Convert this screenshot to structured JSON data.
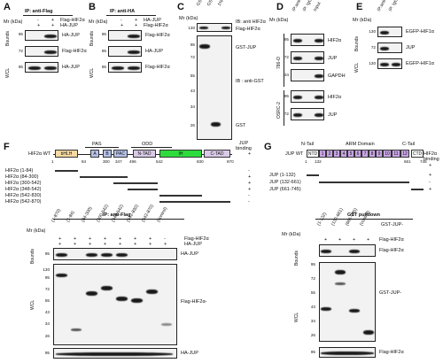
{
  "panels": {
    "A": {
      "letter": "A",
      "mr": "Mr (kDa)",
      "header": "IP: anti-Flag",
      "rows": [
        {
          "sign1": "-",
          "sign2": "+",
          "label": "Flag-HIF2α"
        },
        {
          "sign1": "+",
          "sign2": "+",
          "label": "HA-JUP"
        }
      ],
      "group1": "Bounds",
      "group2": "WCL",
      "blot_labels": [
        "HA-JUP",
        "Flag-HIF2α",
        "HA-JUP"
      ],
      "markers": [
        "95",
        "72",
        "95"
      ]
    },
    "B": {
      "letter": "B",
      "mr": "Mr (kDa)",
      "header": "IP: anti-HA",
      "rows": [
        {
          "sign1": "-",
          "sign2": "+",
          "label": "HA-JUP"
        },
        {
          "sign1": "+",
          "sign2": "+",
          "label": "Flag-HIF2α"
        }
      ],
      "group1": "Bounds",
      "group2": "WCL",
      "blot_labels": [
        "Flag-HIF2α",
        "HA-JUP",
        "Flag-HIF2α"
      ],
      "markers": [
        "95",
        "95",
        "95"
      ]
    },
    "C": {
      "letter": "C",
      "mr": "Mr (kDa)",
      "lanes": [
        "GST-JUP",
        "GST",
        "1% Input"
      ],
      "ib_top": "IB: anti HIF2α",
      "ib_top2": "Flag-HIF2α",
      "ib_mid": "IB : anti-GST",
      "label_gstjup": "GST-JUP",
      "label_gst": "GST",
      "markers": [
        "130",
        "95",
        "72",
        "55",
        "43",
        "34",
        "26"
      ]
    },
    "D": {
      "letter": "D",
      "mr": "Mr (kDa)",
      "lanes": [
        "IP:anti-JUP",
        "IP: IgG",
        "Input"
      ],
      "cell1": "786-O",
      "cell2": "OSRC-2",
      "blot_labels": [
        "HIF2α",
        "JUP",
        "GAPDH",
        "HIF2α",
        "JUP"
      ],
      "markers": [
        "95",
        "72",
        "34",
        "95",
        "72"
      ]
    },
    "E": {
      "letter": "E",
      "mr": "Mr (kDa)",
      "lanes": [
        "IP:anti-JUP",
        "IP: IgG"
      ],
      "group1": "Bounds",
      "group2": "WCL",
      "blot_labels": [
        "EGFP-HIF1α",
        "JUP",
        "EGFP-HIF1α"
      ],
      "markers": [
        "130",
        "72",
        "130"
      ]
    },
    "F": {
      "letter": "F",
      "wt_label": "HIF2α WT",
      "domains": [
        "bHLH",
        "A",
        "B",
        "PAC",
        "N-TAD",
        "IH",
        "C-TAD"
      ],
      "top_labels": [
        "PAS",
        "ODD"
      ],
      "positions": [
        "1",
        "84",
        "300",
        "347",
        "496",
        "542",
        "830",
        "870"
      ],
      "binding_header": "JUP binding",
      "constructs": [
        {
          "name": "HIF2α (1-84)",
          "binding": "-"
        },
        {
          "name": "HIF2α (84-300)",
          "binding": "+"
        },
        {
          "name": "HIF2α (300-542)",
          "binding": "+"
        },
        {
          "name": "HIF2α (348-542)",
          "binding": "+"
        },
        {
          "name": "HIF2α (542-830)",
          "binding": "-"
        },
        {
          "name": "HIF2α (542-870)",
          "binding": "-"
        }
      ],
      "wt_binding": "+",
      "ip_header": "IP: anti-Flag",
      "mr": "Mr (kDa)",
      "lanes": [
        "(1-870)",
        "(1-84)",
        "(84-300)",
        "(300-542)",
        "(348-542)",
        "(542-830)",
        "(542-870)",
        "(control)"
      ],
      "signs": [
        "+",
        "+",
        "+",
        "+",
        "+",
        "+",
        "+",
        "-"
      ],
      "sign_label1": "Flag-HIF2α",
      "sign_label2": "HA-JUP",
      "group1": "Bounds",
      "group2": "WCL",
      "blot_labels": [
        "HA-JUP",
        "Flag-HIF2α-",
        "HA-JUP"
      ],
      "markers": [
        "95",
        "130",
        "95",
        "72",
        "55",
        "43",
        "34",
        "26",
        "95"
      ]
    },
    "G": {
      "letter": "G",
      "wt_label": "JUP WT",
      "ntail": "N-Tail",
      "arm": "ARM Domain",
      "ctail": "C-Tail",
      "domains": [
        "NTD",
        "1",
        "2",
        "3",
        "4",
        "5",
        "6",
        "7",
        "8",
        "9",
        "10",
        "11",
        "12",
        "CTD"
      ],
      "positions": [
        "1",
        "132",
        "661",
        "745"
      ],
      "binding_header": "HIF2α binding",
      "constructs": [
        {
          "name": "JUP (1-132)",
          "binding": "+"
        },
        {
          "name": "JUP (132-661)",
          "binding": "-"
        },
        {
          "name": "JUP (661-745)",
          "binding": "+"
        }
      ],
      "wt_binding": "+",
      "pulldown_header": "GST pulldown",
      "mr": "Mr (kDa)",
      "lanes": [
        "(1-132)",
        "(132-661)",
        "(661-745)",
        "(control)"
      ],
      "lane_header": "GST-JUP-",
      "signs": [
        "+",
        "+",
        "+",
        "+"
      ],
      "sign_label": "Flag-HIF2α",
      "group1": "Bounds",
      "group2": "WCL",
      "blot_labels": [
        "Flag-HIF2α",
        "GST-JUP-",
        "Flag-HIF2α"
      ],
      "markers": [
        "95",
        "72",
        "55",
        "43",
        "34",
        "26",
        "95"
      ]
    }
  }
}
